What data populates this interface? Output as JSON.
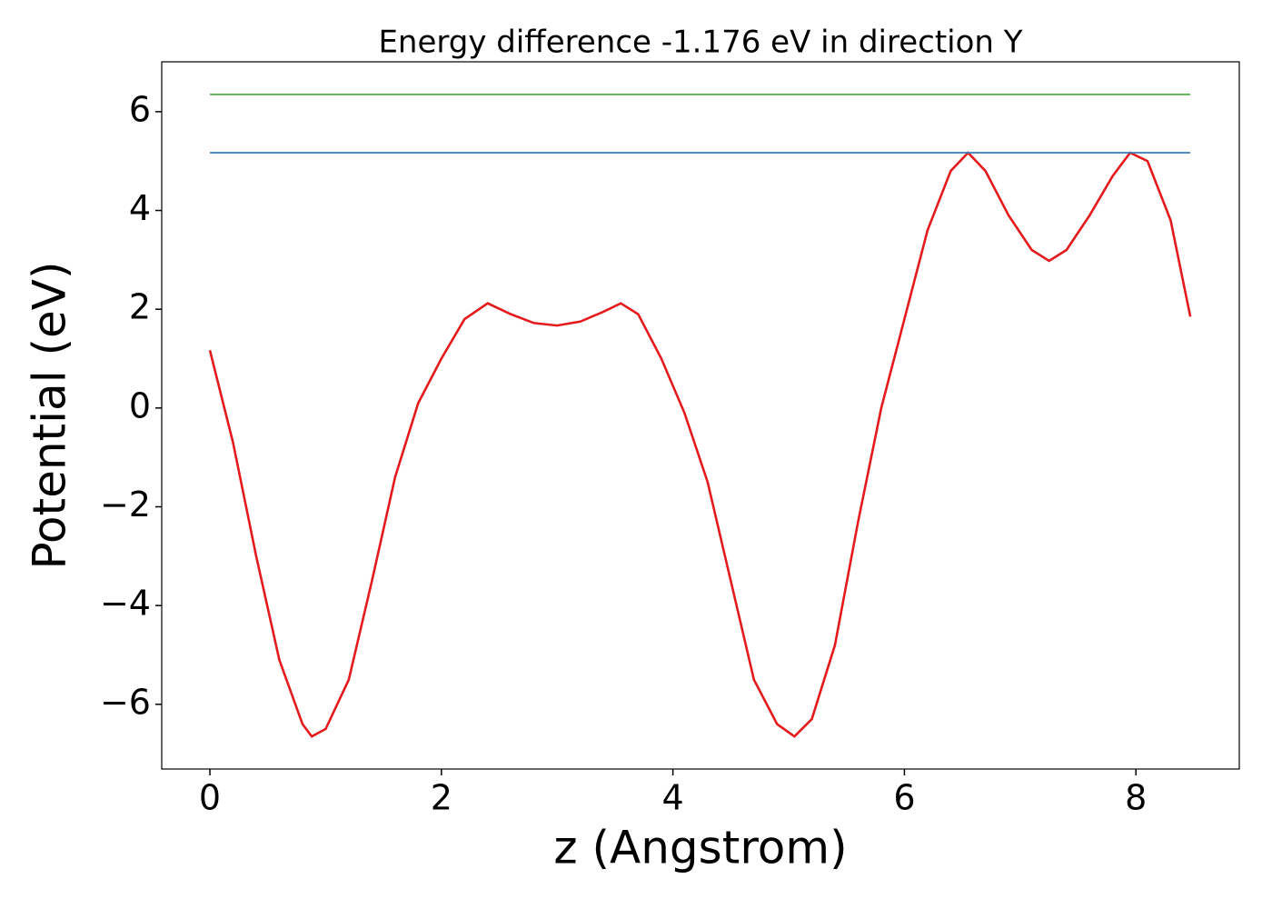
{
  "chart_data": {
    "type": "line",
    "title": "Energy difference -1.176 eV in direction Y",
    "xlabel": "z (Angstrom)",
    "ylabel": "Potential (eV)",
    "xlim": [
      -0.416,
      8.893
    ],
    "ylim": [
      -7.31,
      7.01
    ],
    "xticks": [
      0,
      2,
      4,
      6,
      8
    ],
    "yticks": [
      {
        "value": -6,
        "label": "−6"
      },
      {
        "value": -4,
        "label": "−4"
      },
      {
        "value": -2,
        "label": "−2"
      },
      0,
      2,
      4,
      6
    ],
    "series": [
      {
        "color": "#e41a1c",
        "x": [
          0,
          0.2,
          0.4,
          0.6,
          0.8,
          0.88,
          1.0,
          1.2,
          1.4,
          1.6,
          1.8,
          2.0,
          2.2,
          2.4,
          2.6,
          2.8,
          3.0,
          3.2,
          3.4,
          3.55,
          3.7,
          3.9,
          4.1,
          4.3,
          4.5,
          4.7,
          4.9,
          5.05,
          5.2,
          5.4,
          5.6,
          5.8,
          6.0,
          6.2,
          6.4,
          6.55,
          6.7,
          6.9,
          7.1,
          7.25,
          7.4,
          7.6,
          7.8,
          7.95,
          8.1,
          8.3,
          8.47
        ],
        "values": [
          1.17,
          -0.7,
          -3.0,
          -5.1,
          -6.4,
          -6.65,
          -6.5,
          -5.5,
          -3.5,
          -1.4,
          0.1,
          1.0,
          1.8,
          2.12,
          1.9,
          1.72,
          1.67,
          1.75,
          1.95,
          2.12,
          1.9,
          1.0,
          -0.1,
          -1.5,
          -3.5,
          -5.5,
          -6.4,
          -6.65,
          -6.3,
          -4.8,
          -2.3,
          0.0,
          1.8,
          3.6,
          4.8,
          5.17,
          4.8,
          3.9,
          3.2,
          2.98,
          3.2,
          3.9,
          4.7,
          5.17,
          5.0,
          3.8,
          1.85
        ]
      },
      {
        "color": "#377eb8",
        "x": [
          0,
          8.47
        ],
        "values": [
          5.17,
          5.17
        ]
      },
      {
        "color": "#4daf4a",
        "x": [
          0,
          8.47
        ],
        "values": [
          6.35,
          6.35
        ]
      }
    ]
  }
}
